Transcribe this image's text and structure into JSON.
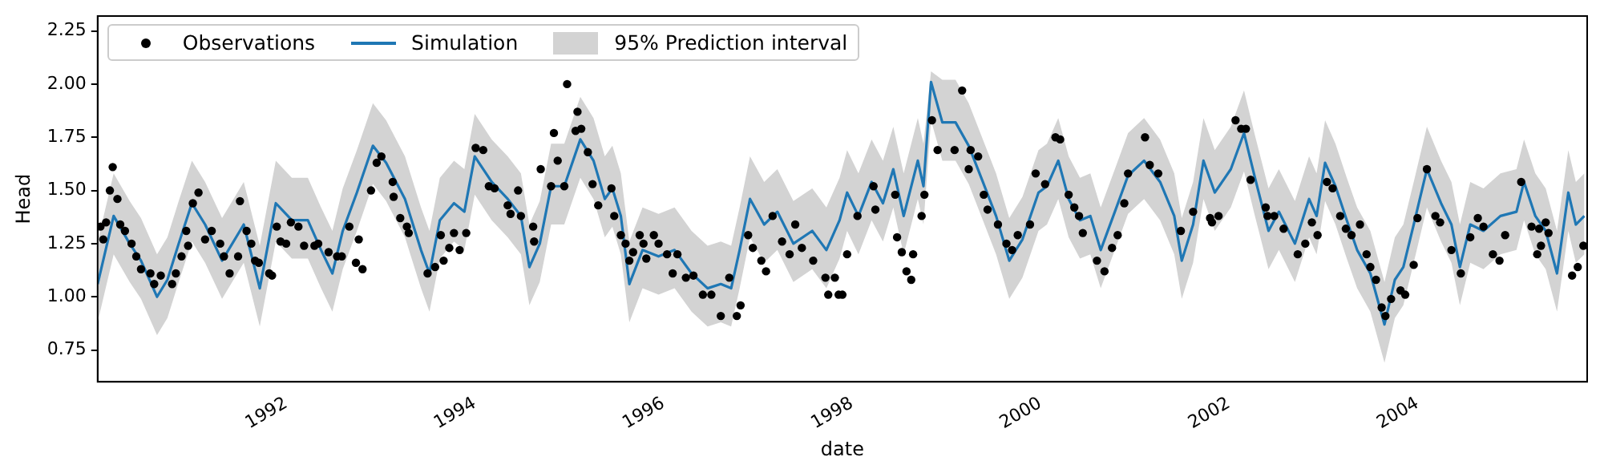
{
  "chart_data": {
    "type": "line",
    "xlabel": "date",
    "ylabel": "Head",
    "xlim": [
      1990.0,
      2005.8
    ],
    "xticks": [
      1992,
      1994,
      1996,
      1998,
      2000,
      2002,
      2004
    ],
    "ylim": [
      0.6,
      2.32
    ],
    "yticks": [
      {
        "value": 0.75,
        "label": "0.75"
      },
      {
        "value": 1.0,
        "label": "1.00"
      },
      {
        "value": 1.25,
        "label": "1.25"
      },
      {
        "value": 1.5,
        "label": "1.50"
      },
      {
        "value": 1.75,
        "label": "1.75"
      },
      {
        "value": 2.0,
        "label": "2.00"
      },
      {
        "value": 2.25,
        "label": "2.25"
      }
    ],
    "grid": false,
    "legend": "top left",
    "series": [
      {
        "name": "Observations",
        "type": "scatter",
        "marker": "circle",
        "color": "#000000",
        "x": [
          1990.03,
          1990.06,
          1990.09,
          1990.13,
          1990.16,
          1990.21,
          1990.24,
          1990.29,
          1990.36,
          1990.41,
          1990.46,
          1990.56,
          1990.6,
          1990.67,
          1990.79,
          1990.83,
          1990.89,
          1990.94,
          1990.96,
          1991.01,
          1991.07,
          1991.14,
          1991.21,
          1991.3,
          1991.34,
          1991.4,
          1991.49,
          1991.51,
          1991.58,
          1991.63,
          1991.67,
          1991.71,
          1991.82,
          1991.85,
          1991.9,
          1991.94,
          1992.0,
          1992.05,
          1992.13,
          1992.19,
          1992.3,
          1992.34,
          1992.45,
          1992.54,
          1992.59,
          1992.67,
          1992.74,
          1992.77,
          1992.81,
          1992.9,
          1992.96,
          1993.01,
          1993.13,
          1993.14,
          1993.21,
          1993.28,
          1993.3,
          1993.5,
          1993.58,
          1993.64,
          1993.67,
          1993.73,
          1993.78,
          1993.84,
          1993.91,
          1994.01,
          1994.09,
          1994.15,
          1994.21,
          1994.35,
          1994.38,
          1994.46,
          1994.49,
          1994.62,
          1994.63,
          1994.7,
          1994.81,
          1994.84,
          1994.88,
          1994.95,
          1994.98,
          1995.07,
          1995.09,
          1995.13,
          1995.2,
          1995.25,
          1995.31,
          1995.45,
          1995.48,
          1995.55,
          1995.6,
          1995.64,
          1995.68,
          1995.75,
          1995.79,
          1995.82,
          1995.9,
          1995.95,
          1996.04,
          1996.1,
          1996.15,
          1996.24,
          1996.32,
          1996.42,
          1996.51,
          1996.61,
          1996.7,
          1996.78,
          1996.82,
          1996.9,
          1996.95,
          1997.04,
          1997.09,
          1997.16,
          1997.26,
          1997.34,
          1997.4,
          1997.47,
          1997.59,
          1997.72,
          1997.75,
          1997.82,
          1997.86,
          1997.9,
          1997.95,
          1998.06,
          1998.23,
          1998.25,
          1998.46,
          1998.48,
          1998.53,
          1998.58,
          1998.63,
          1998.65,
          1998.74,
          1998.77,
          1998.85,
          1998.91,
          1999.09,
          1999.17,
          1999.24,
          1999.26,
          1999.34,
          1999.4,
          1999.44,
          1999.55,
          1999.64,
          1999.7,
          1999.76,
          1999.89,
          1999.95,
          2000.05,
          2000.16,
          2000.21,
          2000.3,
          2000.36,
          2000.41,
          2000.45,
          2000.6,
          2000.68,
          2000.76,
          2000.82,
          2000.89,
          2000.93,
          2001.11,
          2001.16,
          2001.25,
          2001.49,
          2001.62,
          2001.8,
          2001.82,
          2001.89,
          2002.07,
          2002.13,
          2002.18,
          2002.23,
          2002.39,
          2002.41,
          2002.48,
          2002.58,
          2002.73,
          2002.81,
          2002.88,
          2002.94,
          2003.04,
          2003.1,
          2003.18,
          2003.24,
          2003.3,
          2003.39,
          2003.46,
          2003.5,
          2003.56,
          2003.62,
          2003.66,
          2003.72,
          2003.82,
          2003.87,
          2003.96,
          2004.0,
          2004.1,
          2004.19,
          2004.24,
          2004.36,
          2004.46,
          2004.56,
          2004.64,
          2004.7,
          2004.8,
          2004.87,
          2004.93,
          2005.1,
          2005.21,
          2005.27,
          2005.29,
          2005.31,
          2005.36,
          2005.39,
          2005.64,
          2005.7,
          2005.76
        ],
        "values": [
          1.33,
          1.27,
          1.35,
          1.5,
          1.61,
          1.46,
          1.34,
          1.31,
          1.25,
          1.19,
          1.13,
          1.11,
          1.06,
          1.1,
          1.06,
          1.11,
          1.19,
          1.31,
          1.24,
          1.44,
          1.49,
          1.27,
          1.31,
          1.25,
          1.19,
          1.11,
          1.19,
          1.45,
          1.31,
          1.25,
          1.17,
          1.16,
          1.11,
          1.1,
          1.33,
          1.26,
          1.25,
          1.35,
          1.33,
          1.24,
          1.24,
          1.25,
          1.21,
          1.19,
          1.19,
          1.33,
          1.16,
          1.27,
          1.13,
          1.5,
          1.63,
          1.66,
          1.54,
          1.47,
          1.37,
          1.33,
          1.3,
          1.11,
          1.14,
          1.29,
          1.17,
          1.23,
          1.3,
          1.22,
          1.3,
          1.7,
          1.69,
          1.52,
          1.51,
          1.43,
          1.39,
          1.5,
          1.38,
          1.33,
          1.26,
          1.6,
          1.52,
          1.77,
          1.64,
          1.52,
          2.0,
          1.78,
          1.87,
          1.79,
          1.68,
          1.53,
          1.43,
          1.51,
          1.38,
          1.29,
          1.25,
          1.17,
          1.21,
          1.29,
          1.25,
          1.18,
          1.29,
          1.25,
          1.2,
          1.11,
          1.2,
          1.09,
          1.1,
          1.01,
          1.01,
          0.91,
          1.09,
          0.91,
          0.96,
          1.29,
          1.23,
          1.17,
          1.12,
          1.38,
          1.26,
          1.2,
          1.34,
          1.23,
          1.17,
          1.09,
          1.01,
          1.09,
          1.01,
          1.01,
          1.2,
          1.38,
          1.52,
          1.41,
          1.48,
          1.28,
          1.21,
          1.12,
          1.08,
          1.2,
          1.38,
          1.48,
          1.83,
          1.69,
          1.69,
          1.97,
          1.6,
          1.69,
          1.66,
          1.48,
          1.41,
          1.34,
          1.25,
          1.22,
          1.29,
          1.34,
          1.58,
          1.53,
          1.75,
          1.74,
          1.48,
          1.42,
          1.38,
          1.3,
          1.17,
          1.12,
          1.23,
          1.29,
          1.44,
          1.58,
          1.75,
          1.62,
          1.58,
          1.31,
          1.4,
          1.37,
          1.35,
          1.38,
          1.83,
          1.79,
          1.79,
          1.55,
          1.42,
          1.38,
          1.38,
          1.32,
          1.2,
          1.25,
          1.35,
          1.29,
          1.54,
          1.51,
          1.38,
          1.32,
          1.29,
          1.34,
          1.2,
          1.14,
          1.08,
          0.95,
          0.91,
          0.99,
          1.03,
          1.01,
          1.15,
          1.37,
          1.6,
          1.38,
          1.35,
          1.22,
          1.11,
          1.28,
          1.37,
          1.33,
          1.2,
          1.17,
          1.29,
          1.54,
          1.33,
          1.2,
          1.32,
          1.24,
          1.35,
          1.3,
          1.1,
          1.14,
          1.24
        ]
      },
      {
        "name": "Simulation",
        "type": "line",
        "color": "#1f77b4",
        "x": [
          1990.0,
          1990.17,
          1990.34,
          1990.46,
          1990.63,
          1990.74,
          1990.86,
          1991.0,
          1991.14,
          1991.32,
          1991.55,
          1991.72,
          1991.89,
          1992.06,
          1992.23,
          1992.37,
          1992.49,
          1992.6,
          1992.75,
          1992.92,
          1993.06,
          1993.26,
          1993.43,
          1993.52,
          1993.63,
          1993.78,
          1993.89,
          1994.0,
          1994.18,
          1994.35,
          1994.49,
          1994.58,
          1994.69,
          1994.81,
          1994.95,
          1995.12,
          1995.26,
          1995.38,
          1995.46,
          1995.55,
          1995.64,
          1995.78,
          1995.95,
          1996.12,
          1996.3,
          1996.47,
          1996.61,
          1996.72,
          1996.81,
          1996.92,
          1997.07,
          1997.21,
          1997.38,
          1997.58,
          1997.73,
          1997.87,
          1997.95,
          1998.07,
          1998.21,
          1998.33,
          1998.44,
          1998.55,
          1998.7,
          1998.76,
          1998.84,
          1998.96,
          1999.1,
          1999.24,
          1999.39,
          1999.53,
          1999.67,
          1999.81,
          1999.98,
          2000.07,
          2000.19,
          2000.3,
          2000.42,
          2000.53,
          2000.64,
          2000.79,
          2000.93,
          2001.1,
          2001.27,
          2001.42,
          2001.5,
          2001.62,
          2001.73,
          2001.85,
          2002.02,
          2002.16,
          2002.27,
          2002.42,
          2002.53,
          2002.7,
          2002.85,
          2002.93,
          2003.02,
          2003.13,
          2003.25,
          2003.36,
          2003.5,
          2003.65,
          2003.76,
          2003.85,
          2003.96,
          2004.1,
          2004.25,
          2004.36,
          2004.45,
          2004.56,
          2004.7,
          2004.88,
          2005.05,
          2005.13,
          2005.25,
          2005.36,
          2005.48,
          2005.6,
          2005.68,
          2005.77
        ],
        "values": [
          1.06,
          1.38,
          1.25,
          1.17,
          1.0,
          1.08,
          1.25,
          1.44,
          1.34,
          1.17,
          1.34,
          1.04,
          1.44,
          1.36,
          1.36,
          1.22,
          1.11,
          1.31,
          1.49,
          1.71,
          1.63,
          1.46,
          1.22,
          1.11,
          1.36,
          1.44,
          1.4,
          1.66,
          1.54,
          1.46,
          1.38,
          1.14,
          1.25,
          1.52,
          1.52,
          1.74,
          1.64,
          1.46,
          1.51,
          1.38,
          1.06,
          1.22,
          1.19,
          1.22,
          1.11,
          1.04,
          1.06,
          1.04,
          1.22,
          1.46,
          1.34,
          1.4,
          1.25,
          1.31,
          1.22,
          1.36,
          1.49,
          1.38,
          1.54,
          1.44,
          1.6,
          1.38,
          1.64,
          1.52,
          2.01,
          1.82,
          1.82,
          1.71,
          1.54,
          1.38,
          1.17,
          1.27,
          1.49,
          1.52,
          1.64,
          1.46,
          1.36,
          1.38,
          1.22,
          1.4,
          1.57,
          1.64,
          1.54,
          1.38,
          1.17,
          1.34,
          1.64,
          1.49,
          1.6,
          1.77,
          1.57,
          1.31,
          1.4,
          1.25,
          1.46,
          1.38,
          1.63,
          1.52,
          1.36,
          1.22,
          1.11,
          0.87,
          1.08,
          1.14,
          1.34,
          1.6,
          1.44,
          1.34,
          1.14,
          1.34,
          1.31,
          1.38,
          1.4,
          1.54,
          1.38,
          1.31,
          1.11,
          1.49,
          1.34,
          1.38
        ],
        "lower": [
          0.88,
          1.2,
          1.07,
          0.99,
          0.82,
          0.9,
          1.07,
          1.26,
          1.16,
          0.99,
          1.16,
          0.86,
          1.26,
          1.18,
          1.18,
          1.04,
          0.93,
          1.13,
          1.31,
          1.53,
          1.45,
          1.28,
          1.04,
          0.93,
          1.18,
          1.26,
          1.22,
          1.48,
          1.36,
          1.28,
          1.2,
          0.96,
          1.07,
          1.34,
          1.34,
          1.56,
          1.46,
          1.28,
          1.33,
          1.2,
          0.88,
          1.04,
          1.01,
          1.04,
          0.93,
          0.86,
          0.88,
          0.86,
          1.04,
          1.28,
          1.16,
          1.22,
          1.07,
          1.13,
          1.04,
          1.18,
          1.31,
          1.2,
          1.36,
          1.26,
          1.42,
          1.2,
          1.46,
          1.34,
          1.83,
          1.64,
          1.64,
          1.53,
          1.36,
          1.2,
          0.99,
          1.09,
          1.31,
          1.34,
          1.46,
          1.28,
          1.18,
          1.2,
          1.04,
          1.22,
          1.39,
          1.46,
          1.36,
          1.2,
          0.99,
          1.16,
          1.46,
          1.31,
          1.42,
          1.59,
          1.39,
          1.13,
          1.22,
          1.07,
          1.28,
          1.2,
          1.45,
          1.34,
          1.18,
          1.04,
          0.93,
          0.69,
          0.9,
          0.96,
          1.16,
          1.42,
          1.26,
          1.16,
          0.96,
          1.16,
          1.13,
          1.2,
          1.22,
          1.36,
          1.2,
          1.13,
          0.93,
          1.31,
          1.16,
          1.2
        ],
        "upper": [
          1.26,
          1.58,
          1.45,
          1.37,
          1.2,
          1.28,
          1.45,
          1.64,
          1.54,
          1.37,
          1.54,
          1.24,
          1.64,
          1.56,
          1.56,
          1.42,
          1.31,
          1.51,
          1.69,
          1.91,
          1.83,
          1.66,
          1.42,
          1.31,
          1.56,
          1.64,
          1.6,
          1.86,
          1.74,
          1.66,
          1.58,
          1.34,
          1.45,
          1.72,
          1.72,
          1.94,
          1.84,
          1.66,
          1.71,
          1.58,
          1.26,
          1.42,
          1.39,
          1.42,
          1.31,
          1.24,
          1.26,
          1.24,
          1.42,
          1.66,
          1.54,
          1.6,
          1.45,
          1.51,
          1.42,
          1.56,
          1.69,
          1.58,
          1.74,
          1.64,
          1.8,
          1.58,
          1.84,
          1.72,
          2.06,
          2.02,
          2.02,
          1.91,
          1.74,
          1.58,
          1.37,
          1.47,
          1.69,
          1.72,
          1.84,
          1.66,
          1.56,
          1.58,
          1.42,
          1.6,
          1.77,
          1.84,
          1.74,
          1.58,
          1.37,
          1.54,
          1.84,
          1.69,
          1.8,
          1.97,
          1.77,
          1.51,
          1.6,
          1.45,
          1.66,
          1.58,
          1.83,
          1.72,
          1.56,
          1.42,
          1.31,
          1.07,
          1.28,
          1.34,
          1.54,
          1.8,
          1.64,
          1.54,
          1.34,
          1.54,
          1.51,
          1.58,
          1.6,
          1.74,
          1.58,
          1.51,
          1.31,
          1.69,
          1.54,
          1.58
        ]
      },
      {
        "name": "95% Prediction interval",
        "type": "area",
        "color": "#d3d3d3"
      }
    ]
  }
}
